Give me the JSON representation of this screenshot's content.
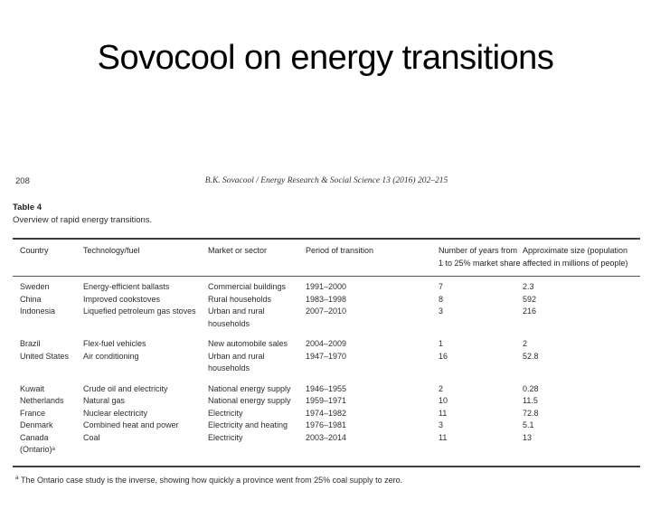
{
  "slide": {
    "title": "Sovocool on energy transitions"
  },
  "paper": {
    "page_number": "208",
    "running_head": "B.K. Sovacool / Energy Research & Social Science 13 (2016) 202–215",
    "table_label": "Table 4",
    "table_caption": "Overview of rapid energy transitions.",
    "footnote_marker": "a",
    "footnote": " The Ontario case study is the inverse, showing how quickly a province went from 25% coal supply to zero."
  },
  "table": {
    "columns": [
      "Country",
      "Technology/fuel",
      "Market or sector",
      "Period of transition",
      "Number of years from\n1 to 25% market share",
      "Approximate size (population\naffected in millions of people)"
    ],
    "groups": [
      [
        [
          "Sweden",
          "Energy-efficient ballasts",
          "Commercial buildings",
          "1991–2000",
          "7",
          "2.3"
        ],
        [
          "China",
          "Improved cookstoves",
          "Rural households",
          "1983–1998",
          "8",
          "592"
        ],
        [
          "Indonesia",
          "Liquefied petroleum gas stoves",
          "Urban and rural\nhouseholds",
          "2007–2010",
          "3",
          "216"
        ]
      ],
      [
        [
          "Brazil",
          "Flex-fuel vehicles",
          "New automobile sales",
          "2004–2009",
          "1",
          "2"
        ],
        [
          "United States",
          "Air conditioning",
          "Urban and rural\nhouseholds",
          "1947–1970",
          "16",
          "52.8"
        ]
      ],
      [
        [
          "Kuwait",
          "Crude oil and electricity",
          "National energy supply",
          "1946–1955",
          "2",
          "0.28"
        ],
        [
          "Netherlands",
          "Natural gas",
          "National energy supply",
          "1959–1971",
          "10",
          "11.5"
        ],
        [
          "France",
          "Nuclear electricity",
          "Electricity",
          "1974–1982",
          "11",
          "72.8"
        ],
        [
          "Denmark",
          "Combined heat and power",
          "Electricity and heating",
          "1976–1981",
          "3",
          "5.1"
        ],
        [
          "Canada\n(Ontario)ᵃ",
          "Coal",
          "Electricity",
          "2003–2014",
          "11",
          "13"
        ]
      ]
    ]
  }
}
